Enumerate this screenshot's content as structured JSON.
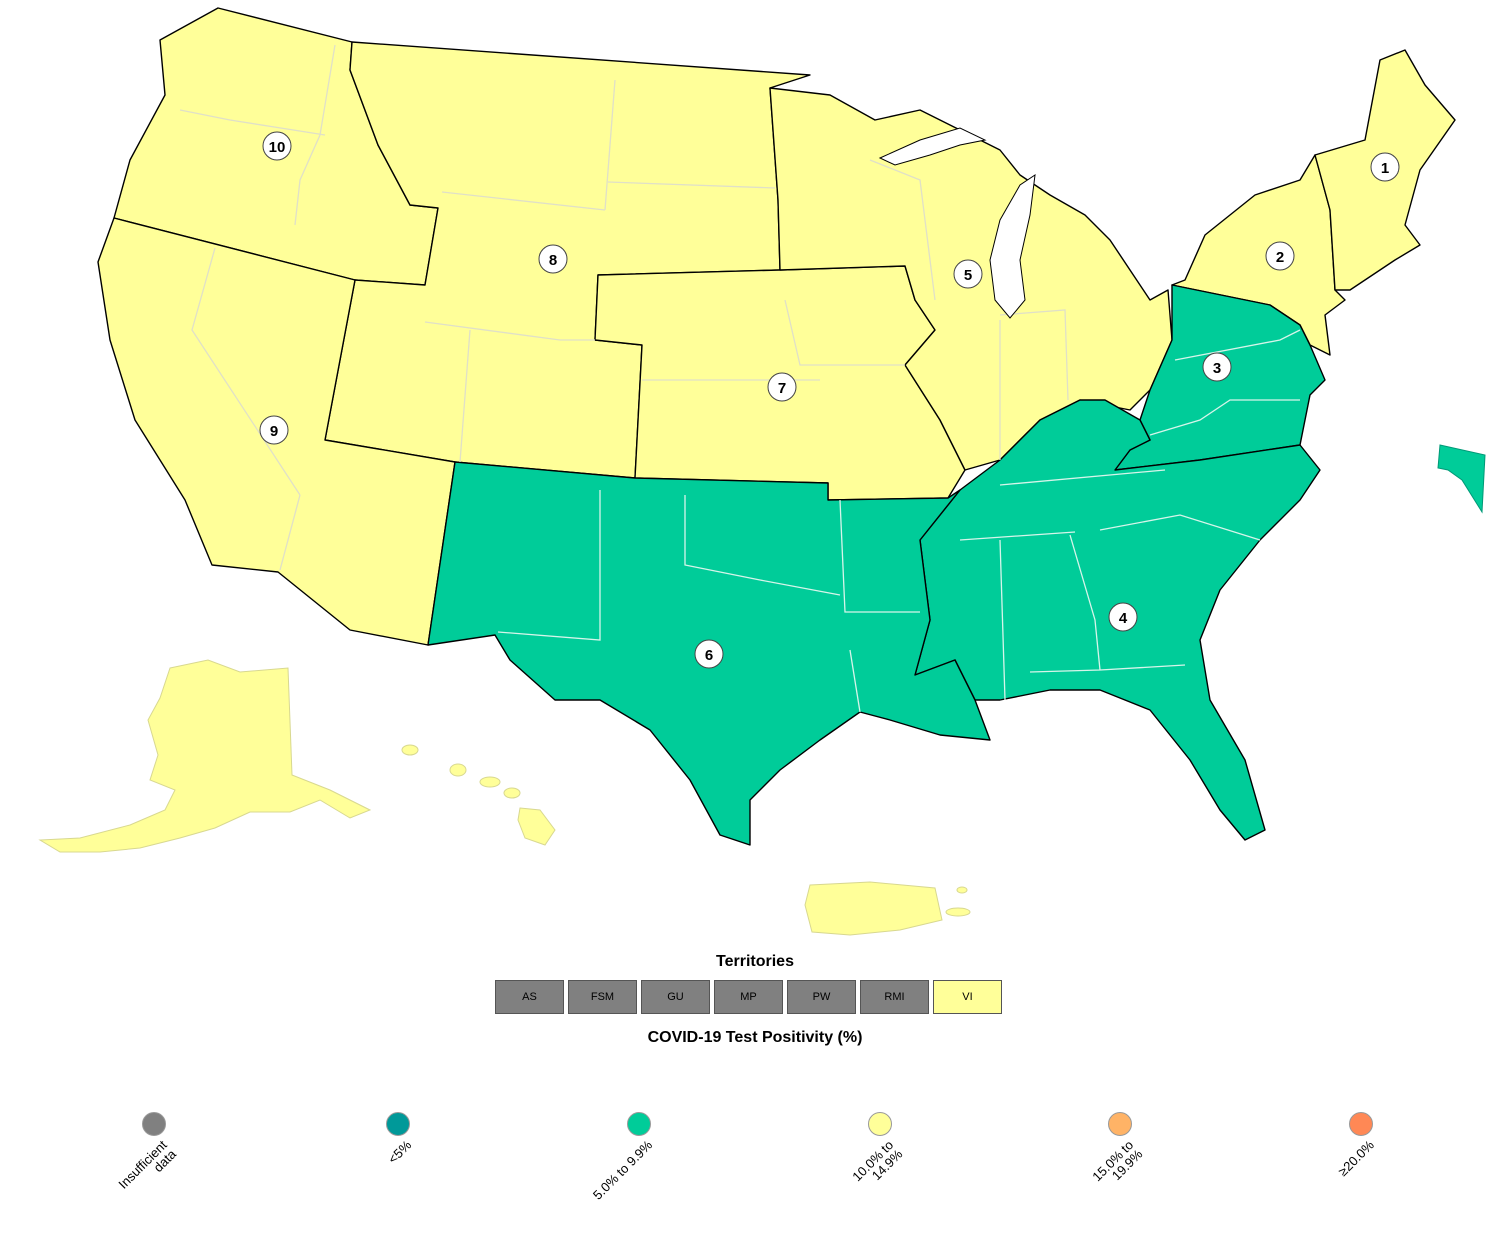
{
  "regions": [
    {
      "number": "1",
      "positivity": "10.0% to 14.9%"
    },
    {
      "number": "2",
      "positivity": "10.0% to 14.9%"
    },
    {
      "number": "3",
      "positivity": "5.0% to 9.9%"
    },
    {
      "number": "4",
      "positivity": "5.0% to 9.9%"
    },
    {
      "number": "5",
      "positivity": "10.0% to 14.9%"
    },
    {
      "number": "6",
      "positivity": "5.0% to 9.9%"
    },
    {
      "number": "7",
      "positivity": "10.0% to 14.9%"
    },
    {
      "number": "8",
      "positivity": "10.0% to 14.9%"
    },
    {
      "number": "9",
      "positivity": "10.0% to 14.9%"
    },
    {
      "number": "10",
      "positivity": "10.0% to 14.9%"
    }
  ],
  "territories": {
    "title": "Territories",
    "items": [
      {
        "label": "AS",
        "category": "Insufficient data",
        "color": "#808080"
      },
      {
        "label": "FSM",
        "category": "Insufficient data",
        "color": "#808080"
      },
      {
        "label": "GU",
        "category": "Insufficient data",
        "color": "#808080"
      },
      {
        "label": "MP",
        "category": "Insufficient data",
        "color": "#808080"
      },
      {
        "label": "PW",
        "category": "Insufficient data",
        "color": "#808080"
      },
      {
        "label": "RMI",
        "category": "Insufficient data",
        "color": "#808080"
      },
      {
        "label": "VI",
        "category": "10.0% to 14.9%",
        "color": "#ffff99"
      }
    ]
  },
  "legend": {
    "title": "COVID-19 Test Positivity (%)",
    "items": [
      {
        "label": "Insufficient\ndata",
        "color": "#808080"
      },
      {
        "label": "<5%",
        "color": "#009999"
      },
      {
        "label": "5.0% to 9.9%",
        "color": "#00cc99"
      },
      {
        "label": "10.0% to\n14.9%",
        "color": "#ffff99"
      },
      {
        "label": "15.0% to\n19.9%",
        "color": "#ffb366"
      },
      {
        "label": "≥20.0%",
        "color": "#ff8855"
      }
    ]
  },
  "colors": {
    "low_moderate": "#00cc99",
    "moderate_high": "#ffff99"
  }
}
